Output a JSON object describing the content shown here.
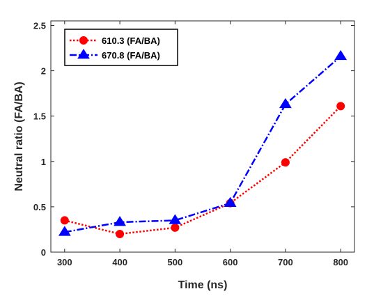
{
  "chart_data": {
    "type": "line",
    "title": "",
    "xlabel": "Time (ns)",
    "ylabel": "Neutral ratio (FA/BA)",
    "xlim": [
      275,
      825
    ],
    "ylim": [
      0,
      2.55
    ],
    "xticks": [
      300,
      400,
      500,
      600,
      700,
      800
    ],
    "xtick_labels": [
      "300",
      "400",
      "500",
      "600",
      "700",
      "800"
    ],
    "yticks": [
      0,
      0.5,
      1,
      1.5,
      2,
      2.5
    ],
    "ytick_labels": [
      "0",
      "0.5",
      "1",
      "1.5",
      "2",
      "2.5"
    ],
    "grid": false,
    "legend_position": "top-left",
    "x": [
      300,
      400,
      500,
      600,
      700,
      800
    ],
    "series": [
      {
        "name": "610.3 (FA/BA)",
        "values": [
          0.35,
          0.2,
          0.27,
          0.54,
          0.99,
          1.61
        ],
        "color": "#ff0000",
        "line_style": "dotted",
        "marker": "circle"
      },
      {
        "name": "670.8 (FA/BA)",
        "values": [
          0.22,
          0.33,
          0.35,
          0.54,
          1.63,
          2.16
        ],
        "color": "#0000ff",
        "line_style": "dash-dot",
        "marker": "triangle"
      }
    ]
  }
}
